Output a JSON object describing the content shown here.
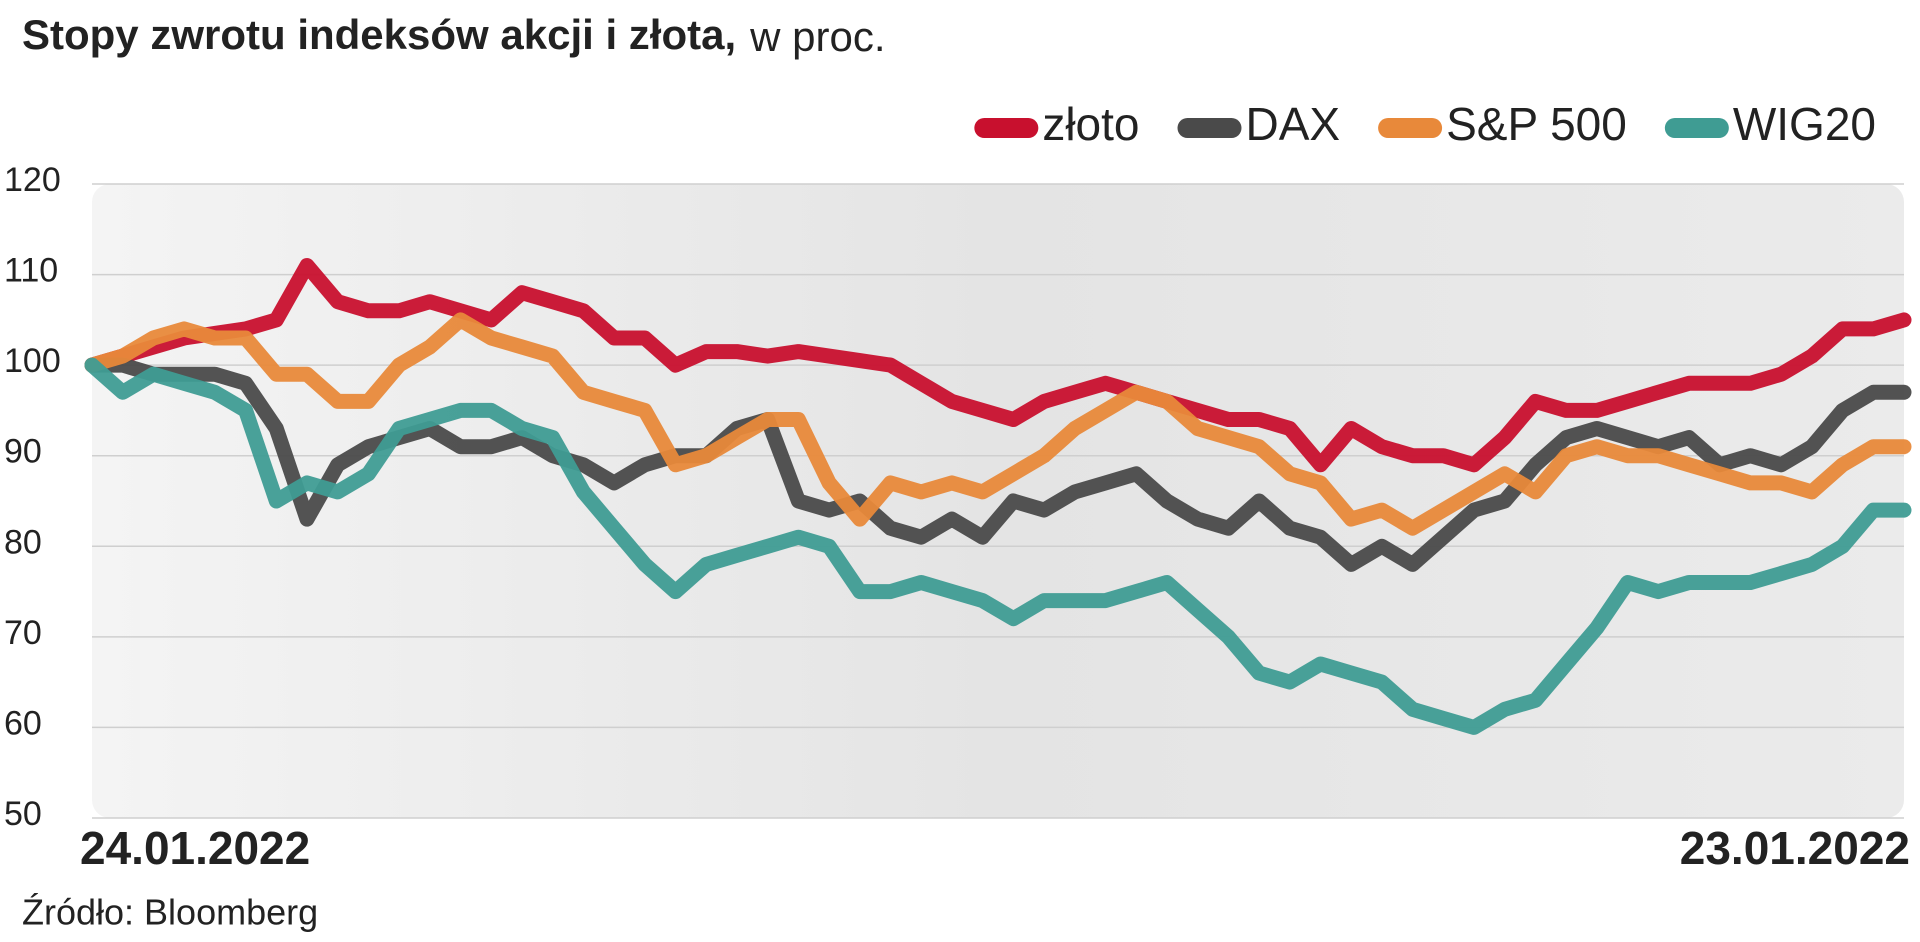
{
  "chart_data": {
    "type": "line",
    "title": "Stopy zwrotu indeksów akcji i złota,",
    "subtitle": "w proc.",
    "source": "Źródło: Bloomberg",
    "categories": [
      "24.01.2022",
      null,
      null,
      null,
      null,
      null,
      null,
      null,
      null,
      null,
      null,
      null,
      null,
      null,
      null,
      null,
      null,
      null,
      null,
      null,
      null,
      null,
      null,
      null,
      null,
      null,
      null,
      null,
      null,
      null,
      null,
      null,
      null,
      null,
      null,
      null,
      null,
      null,
      null,
      null,
      null,
      null,
      null,
      null,
      null,
      null,
      null,
      null,
      null,
      null,
      null,
      null,
      null,
      null,
      null,
      null,
      null,
      null,
      null,
      "23.01.2022"
    ],
    "series": [
      {
        "name": "złoto",
        "color": "#c8102e",
        "values": [
          100,
          101,
          102,
          103,
          103.5,
          104,
          105,
          111,
          107,
          106,
          106,
          107,
          106,
          105,
          108,
          107,
          106,
          103,
          103,
          100,
          101.5,
          101.5,
          101,
          101.5,
          101,
          100.5,
          100,
          98,
          96,
          95,
          94,
          96,
          97,
          98,
          97,
          96,
          95,
          94,
          94,
          93,
          89,
          93,
          91,
          90,
          90,
          89,
          92,
          96,
          95,
          95,
          96,
          97,
          98,
          98,
          98,
          99,
          101,
          104,
          104,
          105
        ]
      },
      {
        "name": "DAX",
        "color": "#4a4a4a",
        "values": [
          100,
          100,
          99,
          99,
          99,
          98,
          93,
          83,
          89,
          91,
          92,
          93,
          91,
          91,
          92,
          90,
          89,
          87,
          89,
          90,
          90,
          93,
          94,
          85,
          84,
          85,
          82,
          81,
          83,
          81,
          85,
          84,
          86,
          87,
          88,
          85,
          83,
          82,
          85,
          82,
          81,
          78,
          80,
          78,
          81,
          84,
          85,
          89,
          92,
          93,
          92,
          91,
          92,
          89,
          90,
          89,
          91,
          95,
          97,
          97
        ]
      },
      {
        "name": "S&P 500",
        "color": "#e8893a",
        "values": [
          100,
          101,
          103,
          104,
          103,
          103,
          99,
          99,
          96,
          96,
          100,
          102,
          105,
          103,
          102,
          101,
          97,
          96,
          95,
          89,
          90,
          92,
          94,
          94,
          87,
          83,
          87,
          86,
          87,
          86,
          88,
          90,
          93,
          95,
          97,
          96,
          93,
          92,
          91,
          88,
          87,
          83,
          84,
          82,
          84,
          86,
          88,
          86,
          90,
          91,
          90,
          90,
          89,
          88,
          87,
          87,
          86,
          89,
          91,
          91
        ]
      },
      {
        "name": "WIG20",
        "color": "#3f9c93",
        "values": [
          100,
          97,
          99,
          98,
          97,
          95,
          85,
          87,
          86,
          88,
          93,
          94,
          95,
          95,
          93,
          92,
          86,
          82,
          78,
          75,
          78,
          79,
          80,
          81,
          80,
          75,
          75,
          76,
          75,
          74,
          72,
          74,
          74,
          74,
          75,
          76,
          73,
          70,
          66,
          65,
          67,
          66,
          65,
          62,
          61,
          60,
          62,
          63,
          67,
          71,
          76,
          75,
          76,
          76,
          76,
          77,
          78,
          80,
          84,
          84
        ]
      }
    ],
    "ylim": [
      50,
      120
    ],
    "yticks": [
      50,
      60,
      70,
      80,
      90,
      100,
      110,
      120
    ],
    "grid": true,
    "legend": "top-right"
  }
}
